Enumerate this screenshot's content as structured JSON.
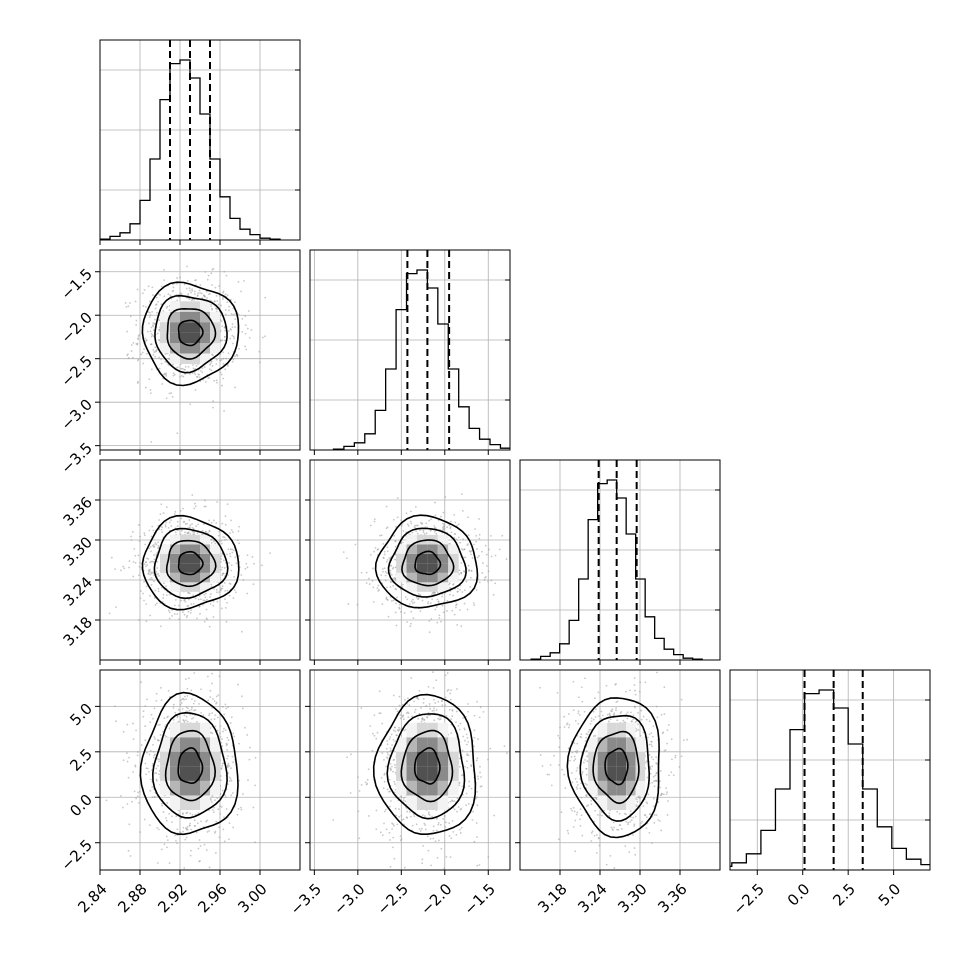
{
  "chart_data": {
    "type": "corner",
    "n_params": 4,
    "params": [
      {
        "mean": 2.93,
        "q16": 2.91,
        "q50": 2.93,
        "q84": 2.95,
        "range": [
          2.84,
          3.04
        ],
        "ticks": [
          2.84,
          2.88,
          2.92,
          2.96,
          3.0
        ],
        "tick_labels": [
          "2.84",
          "2.88",
          "2.92",
          "2.96",
          "3.00"
        ]
      },
      {
        "mean": -2.2,
        "q16": -2.43,
        "q50": -2.2,
        "q84": -1.95,
        "range": [
          -3.55,
          -1.25
        ],
        "ticks": [
          -3.5,
          -3.0,
          -2.5,
          -2.0,
          -1.5
        ],
        "tick_labels": [
          "−3.5",
          "−3.0",
          "−2.5",
          "−2.0",
          "−1.5"
        ]
      },
      {
        "mean": 3.265,
        "q16": 3.238,
        "q50": 3.265,
        "q84": 3.295,
        "range": [
          3.12,
          3.42
        ],
        "ticks": [
          3.18,
          3.24,
          3.3,
          3.36
        ],
        "tick_labels": [
          "3.18",
          "3.24",
          "3.30",
          "3.36"
        ]
      },
      {
        "mean": 1.7,
        "q16": 0.1,
        "q50": 1.7,
        "q84": 3.3,
        "range": [
          -4.0,
          7.0
        ],
        "ticks": [
          -2.5,
          0.0,
          2.5,
          5.0
        ],
        "tick_labels": [
          "−2.5",
          "0.0",
          "2.5",
          "5.0"
        ]
      }
    ],
    "histograms": [
      {
        "counts": [
          0.5,
          2,
          4,
          9,
          22,
          45,
          78,
          98,
          100,
          90,
          70,
          45,
          24,
          12,
          6,
          3,
          1,
          0.5
        ]
      },
      {
        "counts": [
          0.5,
          2,
          4,
          9,
          22,
          45,
          78,
          98,
          100,
          90,
          70,
          45,
          24,
          12,
          6,
          3,
          1,
          0.5
        ]
      },
      {
        "counts": [
          0.5,
          2,
          4,
          9,
          22,
          45,
          78,
          98,
          100,
          90,
          70,
          45,
          24,
          12,
          6,
          3,
          1,
          0.5
        ]
      },
      {
        "counts": [
          0.5,
          2,
          4,
          9,
          22,
          45,
          78,
          98,
          100,
          90,
          70,
          45,
          24,
          12,
          6,
          3,
          1,
          0.5
        ]
      }
    ],
    "contour_levels_sigma": [
      0.5,
      1.0,
      1.5,
      2.0
    ],
    "quantiles": [
      0.16,
      0.5,
      0.84
    ],
    "grid": true,
    "colors": {
      "line": "#000000",
      "points": "#9a9a9a",
      "grid": "#b0b0b0",
      "density": "#000000"
    }
  }
}
